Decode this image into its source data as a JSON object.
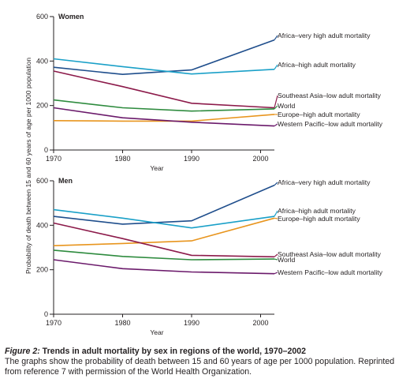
{
  "chart_data": [
    {
      "type": "line",
      "title": "Women",
      "xlabel": "Year",
      "ylabel": "Probability of death between 15 and 60 years of age per 1000 population",
      "x": [
        1970,
        1980,
        1990,
        2002
      ],
      "xticks": [
        1970,
        1980,
        1990,
        2000
      ],
      "xlim": [
        1970,
        2002
      ],
      "ylim": [
        0,
        600
      ],
      "yticks": [
        0,
        200,
        400,
        600
      ],
      "series": [
        {
          "name": "Africa–very high adult mortality",
          "color": "#1f4e8c",
          "values": [
            372,
            340,
            360,
            495
          ]
        },
        {
          "name": "Africa–high adult mortality",
          "color": "#1aa0c8",
          "values": [
            410,
            375,
            342,
            363
          ]
        },
        {
          "name": "Southeast Asia–low adult mortality",
          "color": "#8c1a4a",
          "values": [
            355,
            285,
            210,
            190
          ]
        },
        {
          "name": "World",
          "color": "#2e8b3e",
          "values": [
            225,
            190,
            175,
            185
          ]
        },
        {
          "name": "Europe–high adult mortality",
          "color": "#e8951e",
          "values": [
            132,
            130,
            130,
            160
          ]
        },
        {
          "name": "Western Pacific–low adult mortality",
          "color": "#6b1a6b",
          "values": [
            190,
            145,
            125,
            108
          ]
        }
      ]
    },
    {
      "type": "line",
      "title": "Men",
      "xlabel": "Year",
      "ylabel": "",
      "x": [
        1970,
        1980,
        1990,
        2002
      ],
      "xticks": [
        1970,
        1980,
        1990,
        2000
      ],
      "xlim": [
        1970,
        2002
      ],
      "ylim": [
        0,
        600
      ],
      "yticks": [
        0,
        200,
        400,
        600
      ],
      "series": [
        {
          "name": "Africa–very high adult mortality",
          "color": "#1f4e8c",
          "values": [
            440,
            405,
            420,
            580
          ]
        },
        {
          "name": "Africa–high adult mortality",
          "color": "#1aa0c8",
          "values": [
            470,
            432,
            388,
            440
          ]
        },
        {
          "name": "Europe–high adult mortality",
          "color": "#e8951e",
          "values": [
            308,
            318,
            330,
            432
          ]
        },
        {
          "name": "Southeast Asia–low adult mortality",
          "color": "#8c1a4a",
          "values": [
            410,
            340,
            265,
            258
          ]
        },
        {
          "name": "World",
          "color": "#2e8b3e",
          "values": [
            288,
            260,
            245,
            248
          ]
        },
        {
          "name": "Western Pacific–low adult mortality",
          "color": "#6b1a6b",
          "values": [
            245,
            205,
            190,
            182
          ]
        }
      ]
    }
  ],
  "caption": {
    "figure_label": "Figure 2:",
    "title": " Trends in adult mortality by sex in regions of the world, 1970–2002",
    "body": "The graphs show the probability of death between 15 and 60 years of age per 1000 population. Reprinted from reference 7 with permission of the World Health Organization."
  }
}
